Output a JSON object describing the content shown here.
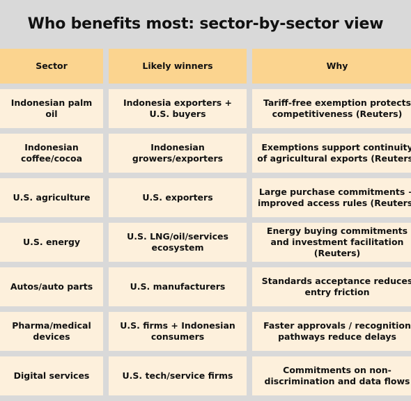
{
  "title": "Who benefits most: sector-by-sector view",
  "table": {
    "headers": [
      "Sector",
      "Likely winners",
      "Why"
    ],
    "rows": [
      [
        "Indonesian palm oil",
        "Indonesia exporters + U.S. buyers",
        "Tariff-free exemption protects competitiveness (Reuters)"
      ],
      [
        "Indonesian coffee/cocoa",
        "Indonesian growers/exporters",
        "Exemptions support continuity of agricultural exports (Reuters)"
      ],
      [
        "U.S. agriculture",
        "U.S. exporters",
        "Large purchase commitments + improved access rules (Reuters)"
      ],
      [
        "U.S. energy",
        "U.S. LNG/oil/services ecosystem",
        "Energy buying commitments and investment facilitation (Reuters)"
      ],
      [
        "Autos/auto parts",
        "U.S. manufacturers",
        "Standards acceptance reduces entry friction"
      ],
      [
        "Pharma/medical devices",
        "U.S. firms + Indonesian consumers",
        "Faster approvals / recognition pathways reduce delays"
      ],
      [
        "Digital services",
        "U.S. tech/service firms",
        "Commitments on non-discrimination and data flows"
      ]
    ]
  }
}
